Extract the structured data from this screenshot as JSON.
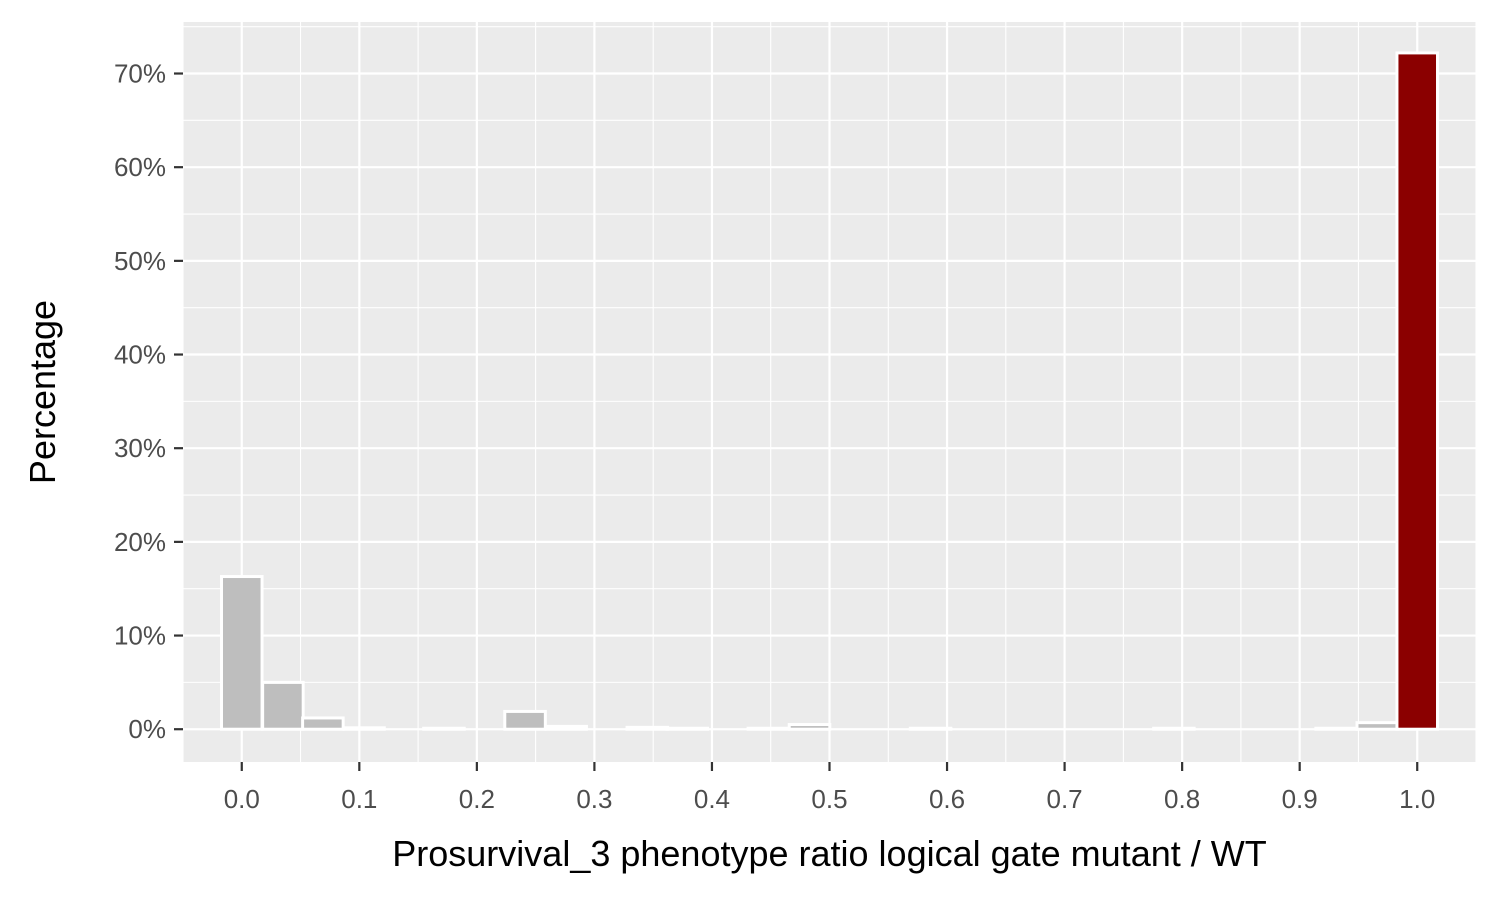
{
  "chart_data": {
    "type": "bar",
    "title": "",
    "xlabel": "Prosurvival_3 phenotype ratio logical gate mutant / WT",
    "ylabel": "Percentage",
    "xlim": [
      -0.05,
      1.05
    ],
    "ylim": [
      -3.5,
      75.5
    ],
    "x_ticks": [
      0.0,
      0.1,
      0.2,
      0.3,
      0.4,
      0.5,
      0.6,
      0.7,
      0.8,
      0.9,
      1.0
    ],
    "x_tick_labels": [
      "0.0",
      "0.1",
      "0.2",
      "0.3",
      "0.4",
      "0.5",
      "0.6",
      "0.7",
      "0.8",
      "0.9",
      "1.0"
    ],
    "y_ticks": [
      0,
      10,
      20,
      30,
      40,
      50,
      60,
      70
    ],
    "y_tick_labels": [
      "0%",
      "10%",
      "20%",
      "30%",
      "40%",
      "50%",
      "60%",
      "70%"
    ],
    "grid": true,
    "bin_width": 0.0345,
    "bars": [
      {
        "x": 0.0,
        "value": 16.3,
        "highlight": false
      },
      {
        "x": 0.035,
        "value": 5.0,
        "highlight": false
      },
      {
        "x": 0.069,
        "value": 1.2,
        "highlight": false
      },
      {
        "x": 0.104,
        "value": 0.15,
        "highlight": false
      },
      {
        "x": 0.172,
        "value": 0.1,
        "highlight": false
      },
      {
        "x": 0.241,
        "value": 1.9,
        "highlight": false
      },
      {
        "x": 0.276,
        "value": 0.3,
        "highlight": false
      },
      {
        "x": 0.345,
        "value": 0.2,
        "highlight": false
      },
      {
        "x": 0.379,
        "value": 0.1,
        "highlight": false
      },
      {
        "x": 0.448,
        "value": 0.1,
        "highlight": false
      },
      {
        "x": 0.483,
        "value": 0.5,
        "highlight": false
      },
      {
        "x": 0.586,
        "value": 0.1,
        "highlight": false
      },
      {
        "x": 0.793,
        "value": 0.1,
        "highlight": false
      },
      {
        "x": 0.931,
        "value": 0.1,
        "highlight": false
      },
      {
        "x": 0.966,
        "value": 0.7,
        "highlight": false
      },
      {
        "x": 1.0,
        "value": 72.2,
        "highlight": true
      }
    ],
    "colors": {
      "panel": "#ebebeb",
      "grid": "#ffffff",
      "bar_fill": "#bebebe",
      "bar_highlight": "#8b0000",
      "bar_outline": "#ffffff",
      "tick": "#333333"
    }
  }
}
